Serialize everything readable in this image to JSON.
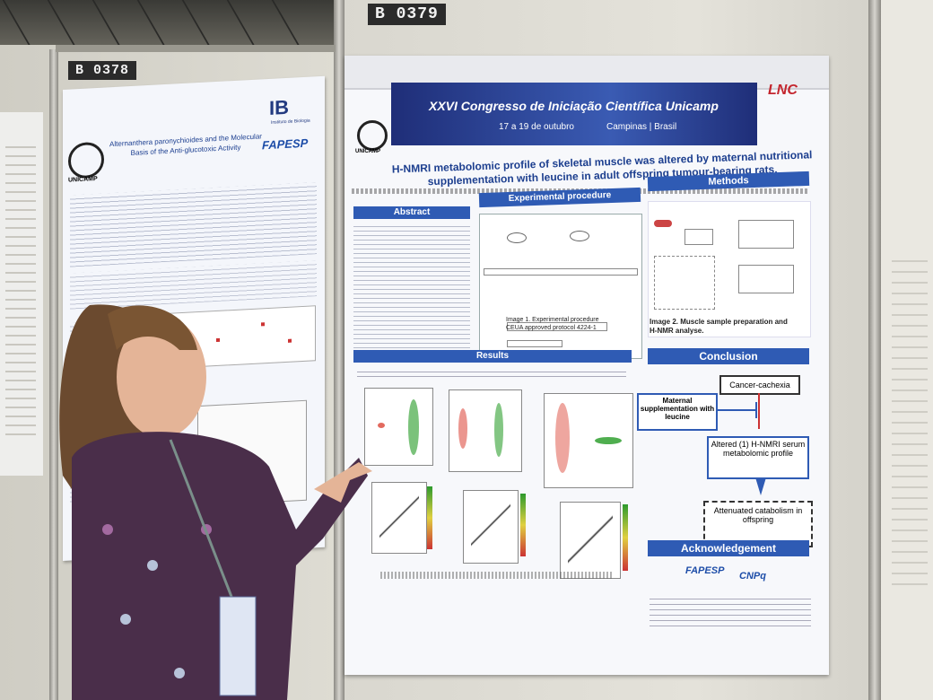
{
  "booths": {
    "left": "B 0378",
    "right": "B 0379"
  },
  "poster_left": {
    "title_line1": "Alternanthera paronychioides and the Molecular",
    "title_line2": "Basis of the Anti-glucotoxic Activity",
    "institute": "IB",
    "institute_sub": "Instituto de Biologia",
    "funder": "FAPESP",
    "university": "UNICAMP"
  },
  "poster_main": {
    "congress": "XXVI Congresso de Iniciação Científica Unicamp",
    "dates": "17 a 19 de outubro",
    "location": "Campinas | Brasil",
    "lab_logo": "LNC",
    "university": "UNICAMP",
    "title_line1": "H-NMRI metabolomic profile of skeletal muscle was altered by maternal nutritional",
    "title_line2": "supplementation with leucine in adult offspring tumour-bearing rats.",
    "sections": {
      "abstract": "Abstract",
      "experimental": "Experimental procedure",
      "methods": "Methods",
      "results": "Results",
      "conclusion": "Conclusion",
      "acknowledgement": "Acknowledgement"
    },
    "image1_caption_line1": "Image 1. Experimental procedure",
    "image1_caption_line2": "CEUA approved protocol  4224-1",
    "image2_caption_line1": "Image 2. Muscle sample preparation and",
    "image2_caption_line2": "H-NMR analyse.",
    "conclusion_nodes": {
      "cachexia": "Cancer-cachexia",
      "maternal": "Maternal supplementation with leucine",
      "altered": "Altered (1) H-NMRI serum metabolomic profile",
      "attenuated": "Attenuated catabolism in offspring"
    },
    "ack_logos": [
      "FAPESP",
      "CNPq"
    ]
  },
  "colors": {
    "section_header": "#2f5bb4",
    "banner": "#1f2e78",
    "scatter_red": "#e26a5f",
    "scatter_green": "#4fae4f"
  }
}
